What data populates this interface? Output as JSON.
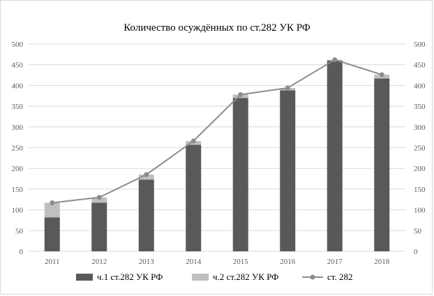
{
  "chart_data": {
    "type": "bar",
    "stacked": true,
    "title": "Количество осуждённых по ст.282 УК РФ",
    "categories": [
      "2011",
      "2012",
      "2013",
      "2014",
      "2015",
      "2016",
      "2017",
      "2018"
    ],
    "series": [
      {
        "name": "ч.1 ст.282 УК РФ",
        "kind": "bar",
        "color": "#595959",
        "values": [
          82,
          117,
          173,
          257,
          370,
          388,
          460,
          417
        ]
      },
      {
        "name": "ч.2 ст.282 УК РФ",
        "kind": "bar",
        "color": "#bfbfbf",
        "values": [
          35,
          13,
          12,
          9,
          8,
          6,
          2,
          9
        ]
      },
      {
        "name": "ст. 282",
        "kind": "line",
        "color": "#8c8c8c",
        "values": [
          117,
          130,
          185,
          266,
          378,
          394,
          462,
          426
        ]
      }
    ],
    "ylim": [
      0,
      500
    ],
    "yticks": [
      "0",
      "50",
      "100",
      "150",
      "200",
      "250",
      "300",
      "350",
      "400",
      "450",
      "500"
    ],
    "secondary_axis": true,
    "grid": true,
    "legend_position": "bottom",
    "xlabel": "",
    "ylabel": ""
  }
}
